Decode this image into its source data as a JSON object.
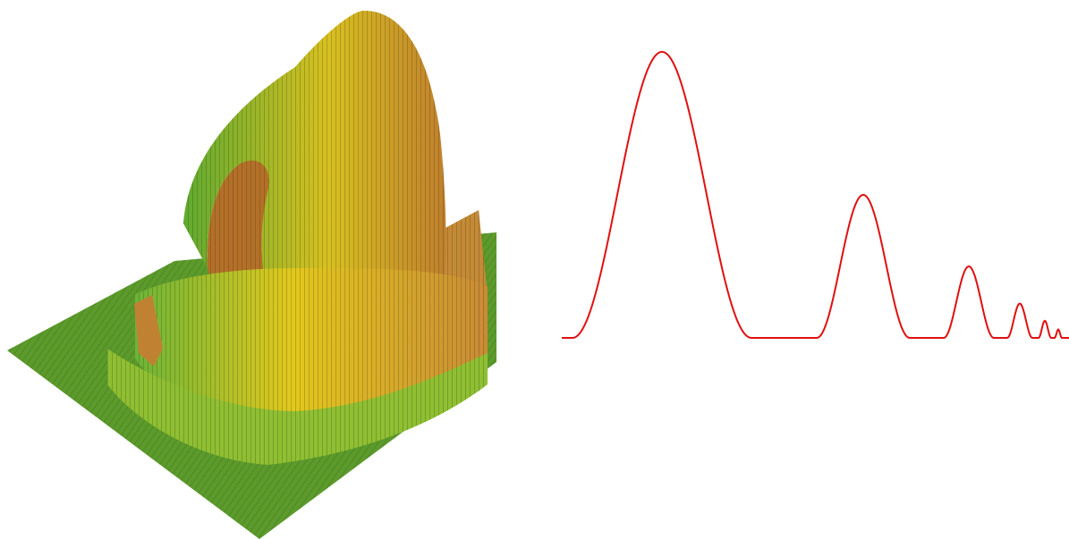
{
  "surface_plot": {
    "kind": "3d-mesh-surface",
    "colors": {
      "ground": "#5b9a2b",
      "green": "#6fb43a",
      "yellow": "#e2c51f",
      "orange": "#c98a35",
      "mesh": "#2a2a0f"
    }
  },
  "profile_plot": {
    "kind": "line-profile",
    "line_color": "#e01010",
    "peaks": [
      {
        "center": 740,
        "height": 1.0,
        "half_width": 100
      },
      {
        "center": 965,
        "height": 0.5,
        "half_width": 52
      },
      {
        "center": 1083,
        "height": 0.25,
        "half_width": 28
      },
      {
        "center": 1140,
        "height": 0.12,
        "half_width": 14
      },
      {
        "center": 1168,
        "height": 0.06,
        "half_width": 7
      },
      {
        "center": 1183,
        "height": 0.03,
        "half_width": 4
      }
    ]
  }
}
